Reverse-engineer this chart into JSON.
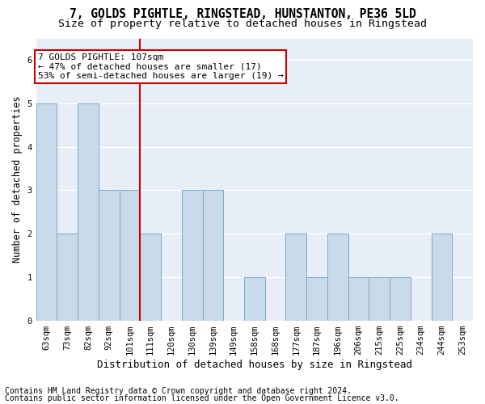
{
  "title_line1": "7, GOLDS PIGHTLE, RINGSTEAD, HUNSTANTON, PE36 5LD",
  "title_line2": "Size of property relative to detached houses in Ringstead",
  "xlabel": "Distribution of detached houses by size in Ringstead",
  "ylabel": "Number of detached properties",
  "footer_line1": "Contains HM Land Registry data © Crown copyright and database right 2024.",
  "footer_line2": "Contains public sector information licensed under the Open Government Licence v3.0.",
  "annotation_line1": "7 GOLDS PIGHTLE: 107sqm",
  "annotation_line2": "← 47% of detached houses are smaller (17)",
  "annotation_line3": "53% of semi-detached houses are larger (19) →",
  "categories": [
    "63sqm",
    "73sqm",
    "82sqm",
    "92sqm",
    "101sqm",
    "111sqm",
    "120sqm",
    "130sqm",
    "139sqm",
    "149sqm",
    "158sqm",
    "168sqm",
    "177sqm",
    "187sqm",
    "196sqm",
    "206sqm",
    "215sqm",
    "225sqm",
    "234sqm",
    "244sqm",
    "253sqm"
  ],
  "values": [
    5,
    2,
    5,
    3,
    3,
    2,
    0,
    3,
    3,
    0,
    1,
    0,
    2,
    1,
    2,
    1,
    1,
    1,
    0,
    2,
    0
  ],
  "bar_color": "#c9daea",
  "bar_edge_color": "#7aaac8",
  "reference_line_x": 4.5,
  "reference_line_color": "#cc0000",
  "annotation_box_edge_color": "#cc0000",
  "annotation_box_face_color": "#ffffff",
  "ylim": [
    0,
    6.5
  ],
  "yticks": [
    0,
    1,
    2,
    3,
    4,
    5,
    6
  ],
  "background_color": "#ffffff",
  "plot_bg_color": "#e8eef8",
  "grid_color": "#ffffff",
  "title_fontsize": 10.5,
  "subtitle_fontsize": 9.5,
  "ylabel_fontsize": 8.5,
  "xlabel_fontsize": 9,
  "tick_fontsize": 7.5,
  "annotation_fontsize": 8,
  "footer_fontsize": 7
}
